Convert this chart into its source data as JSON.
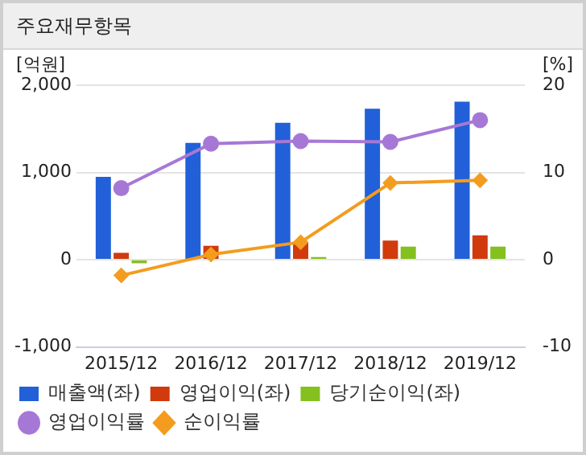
{
  "chart_data": {
    "type": "bar",
    "title": "주요재무항목",
    "ylabel": "[억원]",
    "y2label": "[%]",
    "categories": [
      "2015/12",
      "2016/12",
      "2017/12",
      "2018/12",
      "2019/12"
    ],
    "series": [
      {
        "name": "매출액(좌)",
        "color": "#2160d8",
        "values": [
          950,
          1340,
          1570,
          1730,
          1810
        ]
      },
      {
        "name": "영업이익(좌)",
        "color": "#d03a0c",
        "values": [
          80,
          160,
          200,
          220,
          280
        ]
      },
      {
        "name": "당기순이익(좌)",
        "color": "#84c01e",
        "values": [
          -40,
          0,
          30,
          150,
          150
        ]
      },
      {
        "name": "영업이익률",
        "type": "line",
        "axis": "y2",
        "marker": "circle",
        "color": "#a678d6",
        "values": [
          8.2,
          13.3,
          13.6,
          13.5,
          16.0
        ]
      },
      {
        "name": "순이익률",
        "type": "line",
        "axis": "y2",
        "marker": "diamond",
        "color": "#f39c1e",
        "values": [
          -1.8,
          0.6,
          2.0,
          8.8,
          9.1
        ]
      }
    ],
    "ylim": [
      -1000,
      2000
    ],
    "yticks": [
      {
        "value": -1000,
        "label": "-1,000"
      },
      0,
      {
        "value": 1000,
        "label": "1,000"
      },
      {
        "value": 2000,
        "label": "2,000"
      }
    ],
    "y2lim": [
      -10,
      20
    ],
    "y2ticks": [
      -10,
      0,
      10,
      20
    ],
    "grid": "y",
    "legend": "bottom"
  }
}
